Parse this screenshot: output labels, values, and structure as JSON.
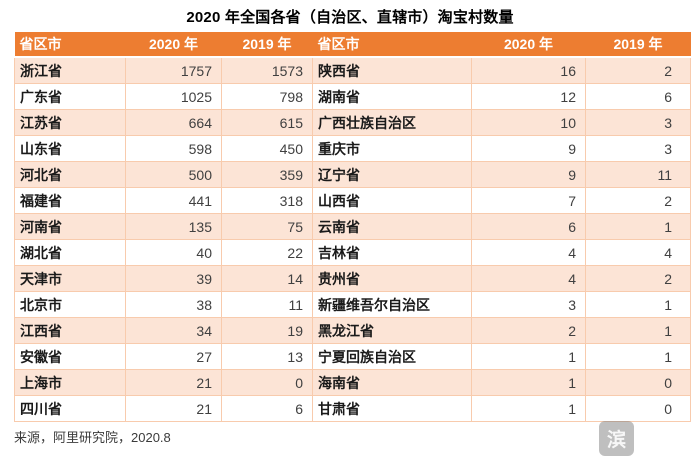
{
  "title": "2020 年全国各省（自治区、直辖市）淘宝村数量",
  "table": {
    "headers": [
      "省区市",
      "2020 年",
      "2019 年",
      "省区市",
      "2020 年",
      "2019 年"
    ],
    "rows": [
      [
        "浙江省",
        "1757",
        "1573",
        "陕西省",
        "16",
        "2"
      ],
      [
        "广东省",
        "1025",
        "798",
        "湖南省",
        "12",
        "6"
      ],
      [
        "江苏省",
        "664",
        "615",
        "广西壮族自治区",
        "10",
        "3"
      ],
      [
        "山东省",
        "598",
        "450",
        "重庆市",
        "9",
        "3"
      ],
      [
        "河北省",
        "500",
        "359",
        "辽宁省",
        "9",
        "11"
      ],
      [
        "福建省",
        "441",
        "318",
        "山西省",
        "7",
        "2"
      ],
      [
        "河南省",
        "135",
        "75",
        "云南省",
        "6",
        "1"
      ],
      [
        "湖北省",
        "40",
        "22",
        "吉林省",
        "4",
        "4"
      ],
      [
        "天津市",
        "39",
        "14",
        "贵州省",
        "4",
        "2"
      ],
      [
        "北京市",
        "38",
        "11",
        "新疆维吾尔自治区",
        "3",
        "1"
      ],
      [
        "江西省",
        "34",
        "19",
        "黑龙江省",
        "2",
        "1"
      ],
      [
        "安徽省",
        "27",
        "13",
        "宁夏回族自治区",
        "1",
        "1"
      ],
      [
        "上海市",
        "21",
        "0",
        "海南省",
        "1",
        "0"
      ],
      [
        "四川省",
        "21",
        "6",
        "甘肃省",
        "1",
        "0"
      ]
    ]
  },
  "source_note": "来源，阿里研究院，2020.8",
  "watermark": {
    "char": "滨"
  },
  "colors": {
    "header_bg": "#ED7D31",
    "header_text": "#FFFFFF",
    "row_alt_bg": "#FCE4D6",
    "row_bg": "#FFFFFF",
    "cell_border": "#F8CBAD",
    "num_text": "#404040",
    "prov_text": "#1A1A1A"
  }
}
